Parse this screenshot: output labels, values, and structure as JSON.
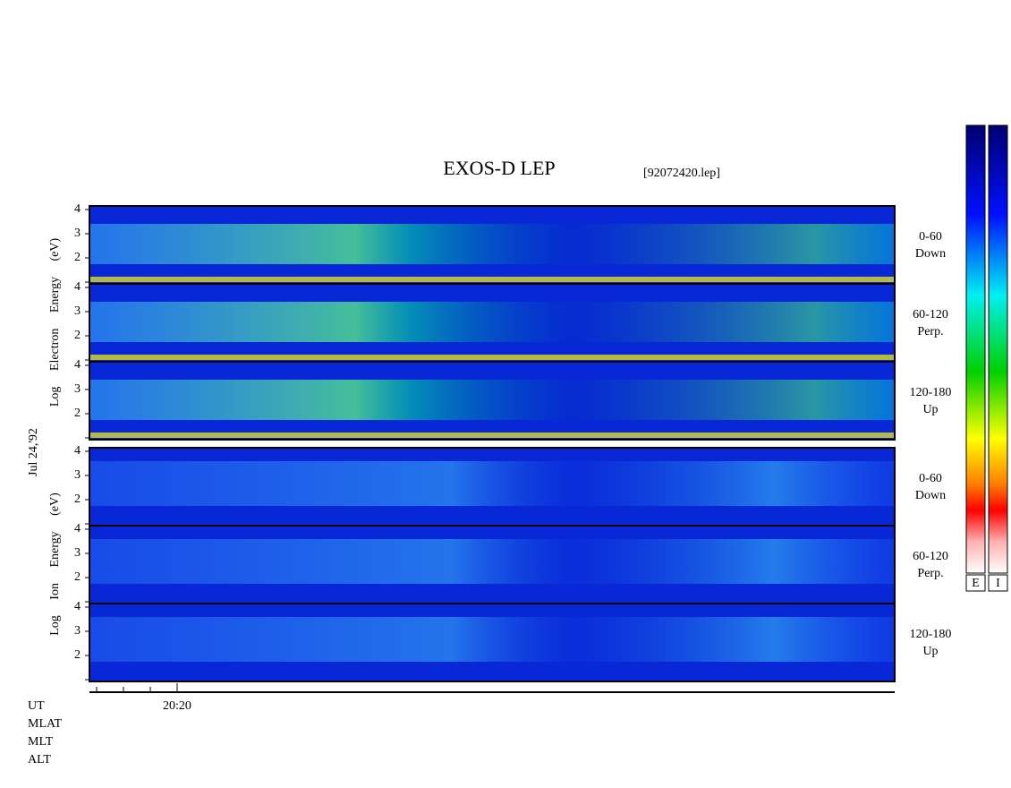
{
  "title": "EXOS-D LEP",
  "file": "[92072420.lep]",
  "date": "Jul 24,'92",
  "groups": [
    {
      "ylabel": "Log Electron Energy (eV)",
      "panels": [
        {
          "angle": "0-60",
          "direction": "Down"
        },
        {
          "angle": "60-120",
          "direction": "Perp."
        },
        {
          "angle": "120-180",
          "direction": "Up"
        }
      ]
    },
    {
      "ylabel": "Log Ion Energy (eV)",
      "panels": [
        {
          "angle": "0-60",
          "direction": "Down"
        },
        {
          "angle": "60-120",
          "direction": "Perp."
        },
        {
          "angle": "120-180",
          "direction": "Up"
        }
      ]
    }
  ],
  "yticks": [
    2,
    3,
    4
  ],
  "colorbars": [
    "E",
    "I"
  ],
  "x_tick": "20:20",
  "footer_rows": [
    "UT",
    "MLAT",
    "MLT",
    "ALT"
  ]
}
